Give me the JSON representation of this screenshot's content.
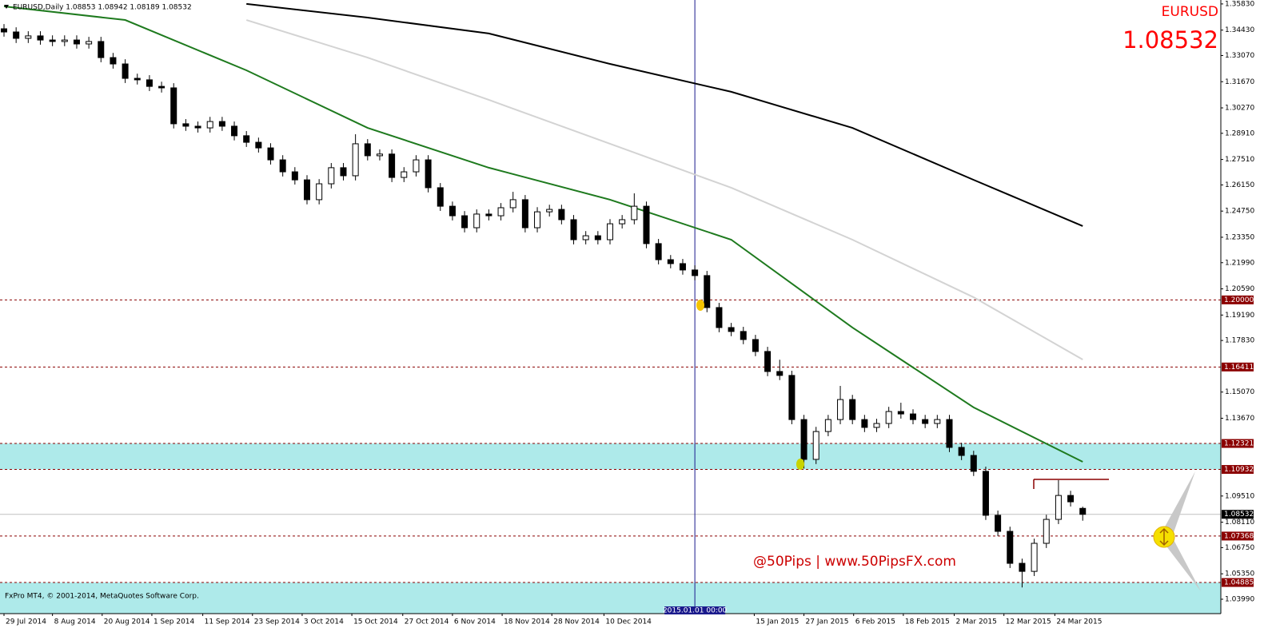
{
  "chart_data": {
    "type": "candlestick",
    "title": "EURUSD,Daily 1.08853 1.08942 1.08189 1.08532",
    "symbol": "EURUSD",
    "watermark": "@50Pips | www.50PipsFX.com",
    "footer": "FxPro MT4, © 2001-2014, MetaQuotes Software Corp.",
    "open": [
      1.345,
      1.3433,
      1.3399,
      1.3412,
      1.339,
      1.3382,
      1.339,
      1.3369,
      1.3382,
      1.3296,
      1.3262,
      1.3185,
      1.3177,
      1.3142,
      1.3134,
      1.2942,
      1.2929,
      1.292,
      1.2954,
      1.2929,
      1.2878,
      1.2843,
      1.2813,
      1.2749,
      1.2685,
      1.2642,
      1.2536,
      1.2621,
      1.2707,
      1.2664,
      1.2835,
      1.2771,
      1.278,
      1.2655,
      1.2685,
      1.2749,
      1.26,
      1.2501,
      1.245,
      1.2386,
      1.2459,
      1.245,
      1.2493,
      1.2536,
      1.2386,
      1.2471,
      1.2484,
      1.2429,
      1.2322,
      1.2343,
      1.2322,
      1.2407,
      1.2429,
      1.2501,
      1.2301,
      1.2215,
      1.2194,
      1.216,
      1.213,
      1.1959,
      1.1852,
      1.1831,
      1.1788,
      1.1724,
      1.1617,
      1.1596,
      1.136,
      1.1147,
      1.1296,
      1.136,
      1.1467,
      1.136,
      1.1318,
      1.1339,
      1.1403,
      1.139,
      1.136,
      1.1339,
      1.136,
      1.1211,
      1.1168,
      1.1083,
      1.0848,
      1.0762,
      1.0591,
      1.0548,
      1.0698,
      1.0826,
      1.0954,
      1.0885
    ],
    "high": [
      1.3475,
      1.3458,
      1.3437,
      1.3437,
      1.3415,
      1.3415,
      1.3415,
      1.3407,
      1.3407,
      1.3321,
      1.3287,
      1.321,
      1.3202,
      1.3167,
      1.3159,
      1.2967,
      1.2954,
      1.2979,
      1.2979,
      1.2954,
      1.2903,
      1.2868,
      1.2838,
      1.2774,
      1.271,
      1.2667,
      1.2646,
      1.2732,
      1.2732,
      1.2886,
      1.286,
      1.2805,
      1.2805,
      1.271,
      1.2774,
      1.2774,
      1.2625,
      1.2526,
      1.2475,
      1.2484,
      1.2484,
      1.2518,
      1.2578,
      1.2561,
      1.2496,
      1.2509,
      1.2509,
      1.2454,
      1.2368,
      1.2368,
      1.2432,
      1.2454,
      1.257,
      1.2526,
      1.2326,
      1.224,
      1.2219,
      1.2185,
      1.2155,
      1.1984,
      1.1877,
      1.1856,
      1.1813,
      1.1749,
      1.168,
      1.1621,
      1.1385,
      1.1321,
      1.1385,
      1.154,
      1.1492,
      1.1385,
      1.1364,
      1.1428,
      1.145,
      1.1415,
      1.1385,
      1.1385,
      1.1385,
      1.1236,
      1.1193,
      1.1108,
      1.0873,
      1.0787,
      1.0616,
      1.0723,
      1.0851,
      1.1036,
      1.0979,
      1.0894
    ],
    "low": [
      1.3408,
      1.3374,
      1.3374,
      1.3365,
      1.3357,
      1.3357,
      1.3344,
      1.3344,
      1.3271,
      1.3237,
      1.316,
      1.3152,
      1.3117,
      1.3109,
      1.2917,
      1.2904,
      1.2895,
      1.2895,
      1.2904,
      1.2853,
      1.2818,
      1.2788,
      1.2724,
      1.266,
      1.2617,
      1.2511,
      1.2511,
      1.2596,
      1.2639,
      1.2639,
      1.2746,
      1.2746,
      1.263,
      1.263,
      1.266,
      1.2575,
      1.2476,
      1.2425,
      1.2361,
      1.2361,
      1.2425,
      1.2425,
      1.2468,
      1.2361,
      1.2361,
      1.2446,
      1.2404,
      1.2297,
      1.2297,
      1.2297,
      1.2297,
      1.2382,
      1.2404,
      1.2276,
      1.219,
      1.2169,
      1.2135,
      1.2105,
      1.1934,
      1.1827,
      1.1806,
      1.1763,
      1.1699,
      1.1592,
      1.1571,
      1.1335,
      1.1098,
      1.1122,
      1.1271,
      1.1335,
      1.1335,
      1.1293,
      1.1293,
      1.1314,
      1.1365,
      1.1335,
      1.1314,
      1.1314,
      1.1186,
      1.1143,
      1.1058,
      1.0823,
      1.0737,
      1.0566,
      1.0462,
      1.0523,
      1.0673,
      1.0801,
      1.0895,
      1.0819
    ],
    "close": [
      1.3433,
      1.3399,
      1.3412,
      1.339,
      1.3382,
      1.339,
      1.3369,
      1.3382,
      1.3296,
      1.3262,
      1.3185,
      1.3177,
      1.3142,
      1.3134,
      1.2942,
      1.2929,
      1.292,
      1.2954,
      1.2929,
      1.2878,
      1.2843,
      1.2813,
      1.2749,
      1.2685,
      1.2642,
      1.2536,
      1.2621,
      1.2707,
      1.2664,
      1.2835,
      1.2771,
      1.278,
      1.2655,
      1.2685,
      1.2749,
      1.26,
      1.2501,
      1.245,
      1.2386,
      1.2459,
      1.245,
      1.2493,
      1.2536,
      1.2386,
      1.2471,
      1.2484,
      1.2429,
      1.2322,
      1.2343,
      1.2322,
      1.2407,
      1.2429,
      1.2501,
      1.2301,
      1.2215,
      1.2194,
      1.216,
      1.213,
      1.1959,
      1.1852,
      1.1831,
      1.1788,
      1.1724,
      1.1617,
      1.1596,
      1.136,
      1.1147,
      1.1296,
      1.136,
      1.1467,
      1.136,
      1.1318,
      1.1339,
      1.1403,
      1.139,
      1.136,
      1.1339,
      1.136,
      1.1211,
      1.1168,
      1.1083,
      1.0848,
      1.0762,
      1.0591,
      1.0548,
      1.0698,
      1.0826,
      1.0954,
      1.092,
      1.0853
    ],
    "up_color": "#ffffff",
    "down_color": "#000000",
    "ylim": [
      1.0322,
      1.3604
    ],
    "yticks": [
      {
        "value": 1.3583,
        "label": "1.35830"
      },
      {
        "value": 1.3443,
        "label": "1.34430"
      },
      {
        "value": 1.3307,
        "label": "1.33070"
      },
      {
        "value": 1.3167,
        "label": "1.31670"
      },
      {
        "value": 1.3027,
        "label": "1.30270"
      },
      {
        "value": 1.2891,
        "label": "1.28910"
      },
      {
        "value": 1.2751,
        "label": "1.27510"
      },
      {
        "value": 1.2615,
        "label": "1.26150"
      },
      {
        "value": 1.2475,
        "label": "1.24750"
      },
      {
        "value": 1.2335,
        "label": "1.23350"
      },
      {
        "value": 1.2199,
        "label": "1.21990"
      },
      {
        "value": 1.2059,
        "label": "1.20590"
      },
      {
        "value": 1.1919,
        "label": "1.19190"
      },
      {
        "value": 1.1783,
        "label": "1.17830"
      },
      {
        "value": 1.1507,
        "label": "1.15070"
      },
      {
        "value": 1.1367,
        "label": "1.13670"
      },
      {
        "value": 1.0951,
        "label": "1.09510"
      },
      {
        "value": 1.0811,
        "label": "1.08110"
      },
      {
        "value": 1.0675,
        "label": "1.06750"
      },
      {
        "value": 1.0535,
        "label": "1.05350"
      },
      {
        "value": 1.0399,
        "label": "1.03990"
      }
    ],
    "xticks": [
      {
        "value": 0,
        "label": "29 Jul 2014"
      },
      {
        "value": 4,
        "label": "8 Aug 2014"
      },
      {
        "value": 8.1,
        "label": "20 Aug 2014"
      },
      {
        "value": 12.2,
        "label": "1 Sep 2014"
      },
      {
        "value": 16.4,
        "label": "11 Sep 2014"
      },
      {
        "value": 20.5,
        "label": "23 Sep 2014"
      },
      {
        "value": 24.6,
        "label": "3 Oct 2014"
      },
      {
        "value": 28.7,
        "label": "15 Oct 2014"
      },
      {
        "value": 32.9,
        "label": "27 Oct 2014"
      },
      {
        "value": 37,
        "label": "6 Nov 2014"
      },
      {
        "value": 41.1,
        "label": "18 Nov 2014"
      },
      {
        "value": 45.2,
        "label": "28 Nov 2014"
      },
      {
        "value": 49.5,
        "label": "10 Dec 2014"
      },
      {
        "value": 61.9,
        "label": "15 Jan 2015"
      },
      {
        "value": 66,
        "label": "27 Jan 2015"
      },
      {
        "value": 70.1,
        "label": "6 Feb 2015"
      },
      {
        "value": 74.2,
        "label": "18 Feb 2015"
      },
      {
        "value": 78.4,
        "label": "2 Mar 2015"
      },
      {
        "value": 82.5,
        "label": "12 Mar 2015"
      },
      {
        "value": 86.7,
        "label": "24 Mar 2015"
      }
    ],
    "lines": [
      {
        "color": "#1e7a1e",
        "x": [
          0,
          10,
          20,
          30,
          40,
          50,
          60,
          70,
          80,
          89
        ],
        "values": [
          1.357,
          1.3497,
          1.3228,
          1.292,
          1.2707,
          1.2536,
          1.2322,
          1.1852,
          1.1425,
          1.1134
        ]
      },
      {
        "color": "#d3d3d3",
        "x": [
          0,
          10,
          20,
          30,
          40,
          50,
          60,
          70,
          80,
          89
        ],
        "values": [
          null,
          null,
          1.3497,
          1.3296,
          1.307,
          1.2835,
          1.26,
          1.2322,
          1.2014,
          1.1681
        ]
      },
      {
        "color": "#000000",
        "x": [
          0,
          10,
          20,
          30,
          40,
          50,
          60,
          70,
          80,
          89
        ],
        "values": [
          null,
          null,
          1.3583,
          1.351,
          1.3425,
          1.3262,
          1.3113,
          1.292,
          1.2642,
          1.2395
        ]
      }
    ],
    "levels": [
      {
        "value": 1.2,
        "label": "1.20000"
      },
      {
        "value": 1.16411,
        "label": "1.16411"
      },
      {
        "value": 1.12321,
        "label": "1.12321"
      },
      {
        "value": 1.10932,
        "label": "1.10932"
      },
      {
        "value": 1.07368,
        "label": "1.07368"
      },
      {
        "value": 1.04885,
        "label": "1.04885"
      }
    ],
    "level_color": "#8b0000",
    "price": {
      "value": 1.08532,
      "label": "1.08532"
    },
    "zones": [
      {
        "low": 1.10932,
        "high": 1.12321
      },
      {
        "low": 1.0322,
        "high": 1.04885
      }
    ],
    "zone_color": "#aeeaea",
    "vline": {
      "x": 57,
      "label": "2015.01.01 00:00",
      "color": "#1a1a8c"
    }
  }
}
